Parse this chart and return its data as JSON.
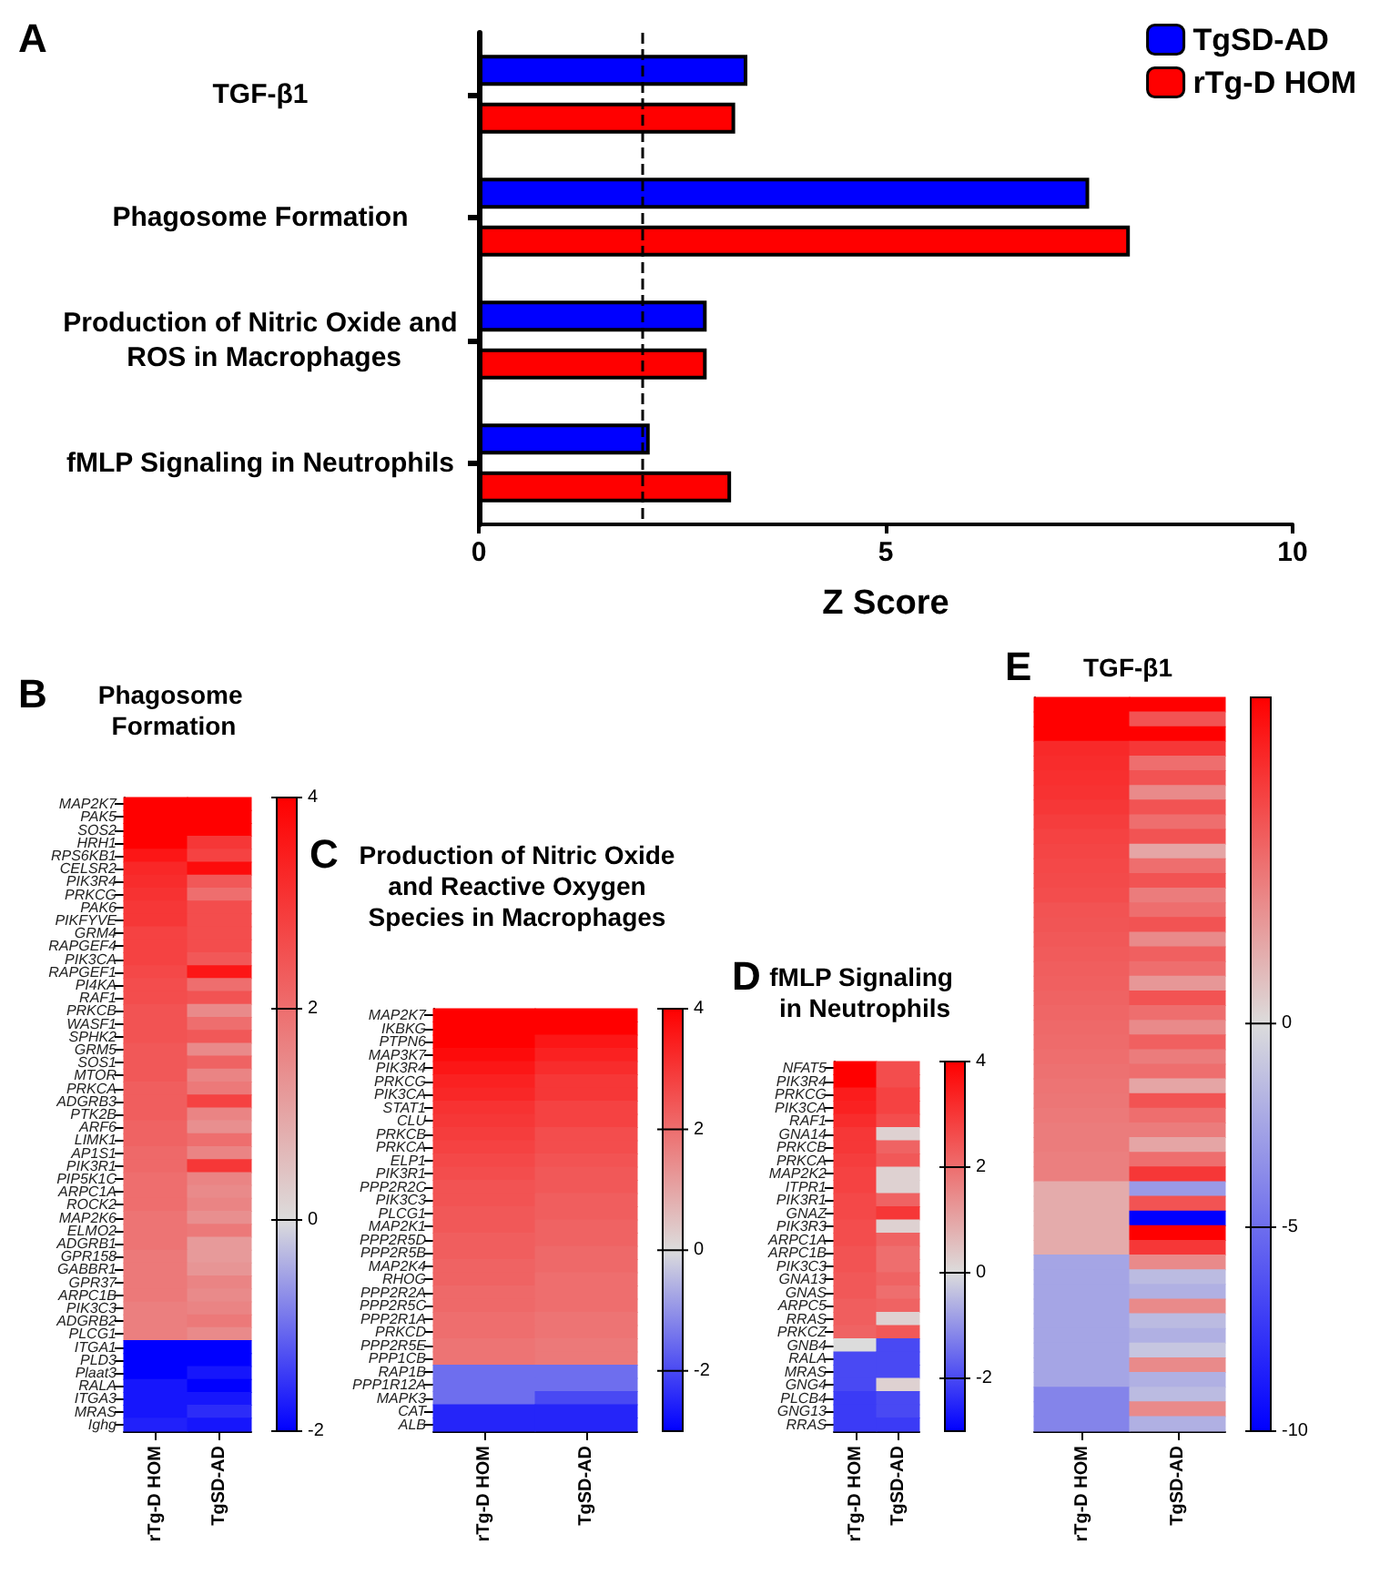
{
  "chart_data": [
    {
      "type": "bar",
      "orientation": "horizontal",
      "annotations": [
        "A"
      ],
      "categories": [
        "TGF-β1",
        "Phagosome Formation",
        "Production of Nitric Oxide and ROS in Macrophages",
        "fMLP Signaling in Neutrophils"
      ],
      "series": [
        {
          "name": "TgSD-AD",
          "color": "#0000ff",
          "values": [
            3.3,
            7.5,
            2.8,
            2.1
          ]
        },
        {
          "name": "rTg-D HOM",
          "color": "#ff0000",
          "values": [
            3.15,
            8.0,
            2.8,
            3.1
          ]
        }
      ],
      "xlim": [
        0,
        10
      ],
      "xticks": [
        0,
        5,
        10
      ],
      "xlabel": "Z Score",
      "grid": false,
      "legend": "top right",
      "ref_lines": [
        {
          "axis": "x",
          "value": 2,
          "line_style": "dashed",
          "color": "#000000"
        }
      ]
    },
    {
      "type": "heatmap",
      "title": "Phagosome Formation",
      "annotations": [
        "B"
      ],
      "categories": [
        "rTg-D HOM",
        "TgSD-AD"
      ],
      "y_categories": [
        "MAP2K7",
        "PAK5",
        "SOS2",
        "HRH1",
        "RPS6KB1",
        "CELSR2",
        "PIK3R4",
        "PRKCG",
        "PAK6",
        "PIKFYVE",
        "GRM4",
        "RAPGEF4",
        "PIK3CA",
        "RAPGEF1",
        "PI4KA",
        "RAF1",
        "PRKCB",
        "WASF1",
        "SPHK2",
        "GRM5",
        "SOS1",
        "MTOR",
        "PRKCA",
        "ADGRB3",
        "PTK2B",
        "ARF6",
        "LIMK1",
        "AP1S1",
        "PIK3R1",
        "PIP5K1C",
        "ARPC1A",
        "ROCK2",
        "MAP2K6",
        "ELMO2",
        "ADGRB1",
        "GPR158",
        "GABBR1",
        "GPR37",
        "ARPC1B",
        "PIK3C3",
        "ADGRB2",
        "PLCG1",
        "ITGA1",
        "PLD3",
        "Plaat3",
        "RALA",
        "ITGA3",
        "MRAS",
        "Ighg"
      ],
      "cells": [
        [
          4,
          4
        ],
        [
          4,
          4
        ],
        [
          4,
          4
        ],
        [
          4,
          3.0
        ],
        [
          3.6,
          2.8
        ],
        [
          3.3,
          3.8
        ],
        [
          3.2,
          2.4
        ],
        [
          3.1,
          2.0
        ],
        [
          3.0,
          2.6
        ],
        [
          3.0,
          2.6
        ],
        [
          2.8,
          2.6
        ],
        [
          2.8,
          2.6
        ],
        [
          2.8,
          2.4
        ],
        [
          2.7,
          3.6
        ],
        [
          2.6,
          2.0
        ],
        [
          2.6,
          2.5
        ],
        [
          2.5,
          1.5
        ],
        [
          2.5,
          2.0
        ],
        [
          2.5,
          2.4
        ],
        [
          2.4,
          1.5
        ],
        [
          2.4,
          2.2
        ],
        [
          2.4,
          1.6
        ],
        [
          2.3,
          1.8
        ],
        [
          2.3,
          2.8
        ],
        [
          2.3,
          1.6
        ],
        [
          2.2,
          1.4
        ],
        [
          2.2,
          2.0
        ],
        [
          2.1,
          1.6
        ],
        [
          2.1,
          3.0
        ],
        [
          2.0,
          1.6
        ],
        [
          2.0,
          1.5
        ],
        [
          2.0,
          1.6
        ],
        [
          1.9,
          1.4
        ],
        [
          1.9,
          1.8
        ],
        [
          1.9,
          1.2
        ],
        [
          1.8,
          1.2
        ],
        [
          1.8,
          1.3
        ],
        [
          1.8,
          1.6
        ],
        [
          1.8,
          1.5
        ],
        [
          1.7,
          1.6
        ],
        [
          1.7,
          1.8
        ],
        [
          1.7,
          1.5
        ],
        [
          -2,
          -2
        ],
        [
          -2,
          -2
        ],
        [
          -2,
          -1.8
        ],
        [
          -1.8,
          -2
        ],
        [
          -1.8,
          -1.8
        ],
        [
          -1.8,
          -1.6
        ],
        [
          -1.7,
          -1.8
        ]
      ],
      "clim": [
        -2,
        4
      ],
      "cticks": [
        -2,
        0,
        2,
        4
      ]
    },
    {
      "type": "heatmap",
      "title": "Production of Nitric Oxide and Reactive Oxygen Species in Macrophages",
      "annotations": [
        "C"
      ],
      "categories": [
        "rTg-D HOM",
        "TgSD-AD"
      ],
      "y_categories": [
        "MAP2K7",
        "IKBKG",
        "PTPN6",
        "MAP3K7",
        "PIK3R4",
        "PRKCG",
        "PIK3CA",
        "STAT1",
        "CLU",
        "PRKCB",
        "PRKCA",
        "ELP1",
        "PIK3R1",
        "PPP2R2C",
        "PIK3C3",
        "PLCG1",
        "MAP2K1",
        "PPP2R5D",
        "PPP2R5B",
        "MAP2K4",
        "RHOG",
        "PPP2R2A",
        "PPP2R5C",
        "PPP2R1A",
        "PRKCD",
        "PPP2R5E",
        "PPP1CB",
        "RAP1B",
        "PPP1R12A",
        "MAPK3",
        "CAT",
        "ALB"
      ],
      "cells": [
        [
          4,
          4
        ],
        [
          4,
          4
        ],
        [
          4,
          3.6
        ],
        [
          3.8,
          3.4
        ],
        [
          3.6,
          3.2
        ],
        [
          3.4,
          3.0
        ],
        [
          3.3,
          3.0
        ],
        [
          3.1,
          2.8
        ],
        [
          3.0,
          2.8
        ],
        [
          2.9,
          2.6
        ],
        [
          2.8,
          2.6
        ],
        [
          2.7,
          2.5
        ],
        [
          2.6,
          2.4
        ],
        [
          2.5,
          2.4
        ],
        [
          2.5,
          2.3
        ],
        [
          2.4,
          2.3
        ],
        [
          2.4,
          2.2
        ],
        [
          2.3,
          2.2
        ],
        [
          2.3,
          2.1
        ],
        [
          2.2,
          2.1
        ],
        [
          2.2,
          2.0
        ],
        [
          2.1,
          2.0
        ],
        [
          2.1,
          2.0
        ],
        [
          2.0,
          1.9
        ],
        [
          2.0,
          1.9
        ],
        [
          1.9,
          1.8
        ],
        [
          1.9,
          1.8
        ],
        [
          -1.5,
          -1.5
        ],
        [
          -1.5,
          -1.5
        ],
        [
          -1.5,
          -2.0
        ],
        [
          -2.5,
          -2.5
        ],
        [
          -2.5,
          -2.5
        ]
      ],
      "clim": [
        -3,
        4
      ],
      "cticks": [
        -2,
        0,
        2,
        4
      ]
    },
    {
      "type": "heatmap",
      "title": "fMLP Signaling in Neutrophils",
      "annotations": [
        "D"
      ],
      "categories": [
        "rTg-D HOM",
        "TgSD-AD"
      ],
      "y_categories": [
        "NFAT5",
        "PIK3R4",
        "PRKCG",
        "PIK3CA",
        "RAF1",
        "GNA14",
        "PRKCB",
        "PRKCA",
        "MAP2K2",
        "ITPR1",
        "PIK3R1",
        "GNAZ",
        "PIK3R3",
        "ARPC1A",
        "ARPC1B",
        "PIK3C3",
        "GNA13",
        "GNAS",
        "ARPC5",
        "RRAS",
        "PRKCZ",
        "GNB4",
        "RALA",
        "MRAS",
        "GNG4",
        "PLCB4",
        "GNG13",
        "RRAS"
      ],
      "cells": [
        [
          4,
          2.6
        ],
        [
          4,
          2.6
        ],
        [
          3.5,
          2.8
        ],
        [
          3.4,
          2.8
        ],
        [
          3.2,
          2.6
        ],
        [
          3.0,
          0.2
        ],
        [
          3.0,
          2.2
        ],
        [
          2.9,
          2.4
        ],
        [
          2.8,
          0.2
        ],
        [
          2.8,
          0.2
        ],
        [
          2.7,
          2.2
        ],
        [
          2.7,
          3.0
        ],
        [
          2.6,
          0.2
        ],
        [
          2.6,
          2.2
        ],
        [
          2.5,
          2.0
        ],
        [
          2.5,
          2.0
        ],
        [
          2.4,
          2.2
        ],
        [
          2.4,
          2.0
        ],
        [
          2.3,
          2.2
        ],
        [
          2.3,
          0.2
        ],
        [
          2.2,
          2.4
        ],
        [
          0,
          -2
        ],
        [
          -2,
          -2
        ],
        [
          -2,
          -2
        ],
        [
          -2,
          0.2
        ],
        [
          -2.2,
          -2
        ],
        [
          -2.2,
          -2
        ],
        [
          -2.2,
          -2.2
        ]
      ],
      "clim": [
        -3,
        4
      ],
      "cticks": [
        -2,
        0,
        2,
        4
      ]
    },
    {
      "type": "heatmap",
      "title": "TGF-β1",
      "annotations": [
        "E"
      ],
      "categories": [
        "rTg-D HOM",
        "TgSD-AD"
      ],
      "y_categories": [
        null,
        null,
        null,
        null,
        null,
        null,
        null,
        null,
        null,
        null,
        null,
        null,
        null,
        null,
        null,
        null,
        null,
        null,
        null,
        null,
        null,
        null,
        null,
        null,
        null,
        null,
        null,
        null,
        null,
        null,
        null,
        null,
        null,
        null,
        null,
        null,
        null,
        null,
        null,
        null,
        null,
        null,
        null,
        null,
        null,
        null,
        null,
        null,
        null,
        null
      ],
      "cells": [
        [
          8,
          8
        ],
        [
          8,
          5
        ],
        [
          8,
          8
        ],
        [
          6.5,
          6
        ],
        [
          6.4,
          4
        ],
        [
          6.3,
          5
        ],
        [
          6.2,
          3
        ],
        [
          6.0,
          5
        ],
        [
          5.8,
          4
        ],
        [
          5.6,
          5
        ],
        [
          5.5,
          2
        ],
        [
          5.4,
          4
        ],
        [
          5.3,
          5
        ],
        [
          5.2,
          3.5
        ],
        [
          5.0,
          4
        ],
        [
          4.9,
          5
        ],
        [
          4.8,
          3
        ],
        [
          4.7,
          4.5
        ],
        [
          4.6,
          4
        ],
        [
          4.5,
          2.5
        ],
        [
          4.4,
          5
        ],
        [
          4.3,
          4
        ],
        [
          4.2,
          3
        ],
        [
          4.1,
          4.5
        ],
        [
          4.0,
          3.5
        ],
        [
          3.9,
          4
        ],
        [
          3.8,
          2
        ],
        [
          3.7,
          5
        ],
        [
          3.6,
          4
        ],
        [
          3.5,
          3.5
        ],
        [
          3.5,
          2
        ],
        [
          3.4,
          4
        ],
        [
          3.4,
          6
        ],
        [
          1.8,
          -3
        ],
        [
          1.8,
          5
        ],
        [
          1.8,
          -10
        ],
        [
          1.8,
          8
        ],
        [
          1.8,
          6
        ],
        [
          -2.5,
          3
        ],
        [
          -2.5,
          -1.5
        ],
        [
          -2.5,
          -2
        ],
        [
          -2.5,
          3
        ],
        [
          -2.5,
          -1.5
        ],
        [
          -2.5,
          -2
        ],
        [
          -2.5,
          -1
        ],
        [
          -2.5,
          3
        ],
        [
          -2.5,
          -2
        ],
        [
          -4,
          -1.5
        ],
        [
          -4,
          3
        ],
        [
          -4,
          -2
        ]
      ],
      "clim": [
        -10,
        8
      ],
      "cticks": [
        -10,
        -5,
        0
      ]
    }
  ]
}
